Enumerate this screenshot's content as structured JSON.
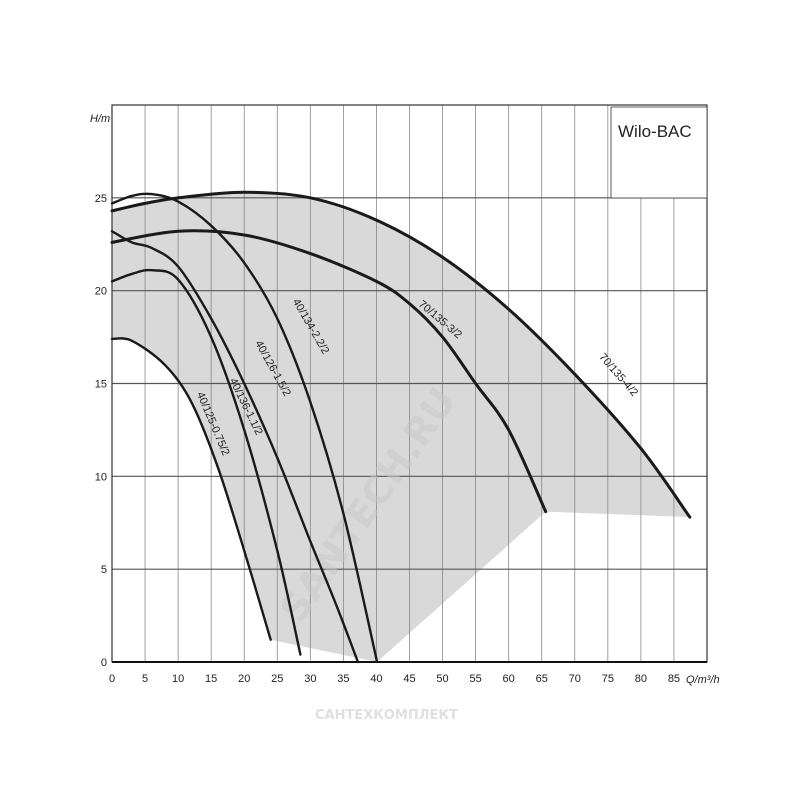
{
  "chart_data": {
    "type": "line",
    "title": "Wilo-BAC",
    "xlabel": "Q/m³/h",
    "ylabel": "H/m",
    "xlim": [
      0,
      90
    ],
    "ylim": [
      0,
      30
    ],
    "xticks": [
      0,
      5,
      10,
      15,
      20,
      25,
      30,
      35,
      40,
      45,
      50,
      55,
      60,
      65,
      70,
      75,
      80,
      85
    ],
    "yticks": [
      0,
      5,
      10,
      15,
      20,
      25
    ],
    "grid": true,
    "shaded_operating_region": true,
    "colors": {
      "curve": "#1a1a1a",
      "region": "#d9d9d9",
      "grid": "#888888"
    },
    "series": [
      {
        "name": "40/125-0.75/2",
        "points": [
          [
            0,
            17.4
          ],
          [
            3,
            17.3
          ],
          [
            8,
            16
          ],
          [
            12,
            14
          ],
          [
            16,
            10.5
          ],
          [
            20,
            6
          ],
          [
            24,
            1.2
          ]
        ]
      },
      {
        "name": "40/136-1.1/2",
        "points": [
          [
            0,
            20.5
          ],
          [
            3,
            20.9
          ],
          [
            6,
            21.1
          ],
          [
            10,
            20.6
          ],
          [
            15,
            17.5
          ],
          [
            20,
            12.5
          ],
          [
            25,
            6
          ],
          [
            28.5,
            0.4
          ]
        ]
      },
      {
        "name": "40/126-1.5/2",
        "points": [
          [
            0,
            23.2
          ],
          [
            3,
            22.6
          ],
          [
            6,
            22.3
          ],
          [
            10,
            21.3
          ],
          [
            15,
            18.5
          ],
          [
            20,
            15
          ],
          [
            25,
            11
          ],
          [
            30,
            6.5
          ],
          [
            34,
            3
          ],
          [
            37.2,
            0
          ]
        ]
      },
      {
        "name": "40/134-2.2/2",
        "points": [
          [
            0,
            24.7
          ],
          [
            3,
            25.1
          ],
          [
            6,
            25.2
          ],
          [
            10,
            24.8
          ],
          [
            15,
            23.5
          ],
          [
            20,
            21.5
          ],
          [
            25,
            18.5
          ],
          [
            30,
            14
          ],
          [
            35,
            8
          ],
          [
            40.1,
            0
          ]
        ]
      },
      {
        "name": "70/135-3/2",
        "points": [
          [
            0,
            22.6
          ],
          [
            10,
            23.2
          ],
          [
            20,
            23
          ],
          [
            30,
            22
          ],
          [
            40,
            20.5
          ],
          [
            45,
            19.3
          ],
          [
            50,
            17.5
          ],
          [
            55,
            15
          ],
          [
            60,
            12.5
          ],
          [
            65.6,
            8.1
          ]
        ]
      },
      {
        "name": "70/135-4/2",
        "points": [
          [
            0,
            24.3
          ],
          [
            5,
            24.7
          ],
          [
            10,
            25
          ],
          [
            20,
            25.3
          ],
          [
            30,
            25
          ],
          [
            40,
            23.8
          ],
          [
            50,
            21.8
          ],
          [
            60,
            19
          ],
          [
            70,
            15.5
          ],
          [
            80,
            11.5
          ],
          [
            87.4,
            7.8
          ]
        ]
      }
    ]
  },
  "watermarks": {
    "diagonal": "SANTECH.RU",
    "bottom": "САНТЕХКОМПЛЕКТ"
  }
}
